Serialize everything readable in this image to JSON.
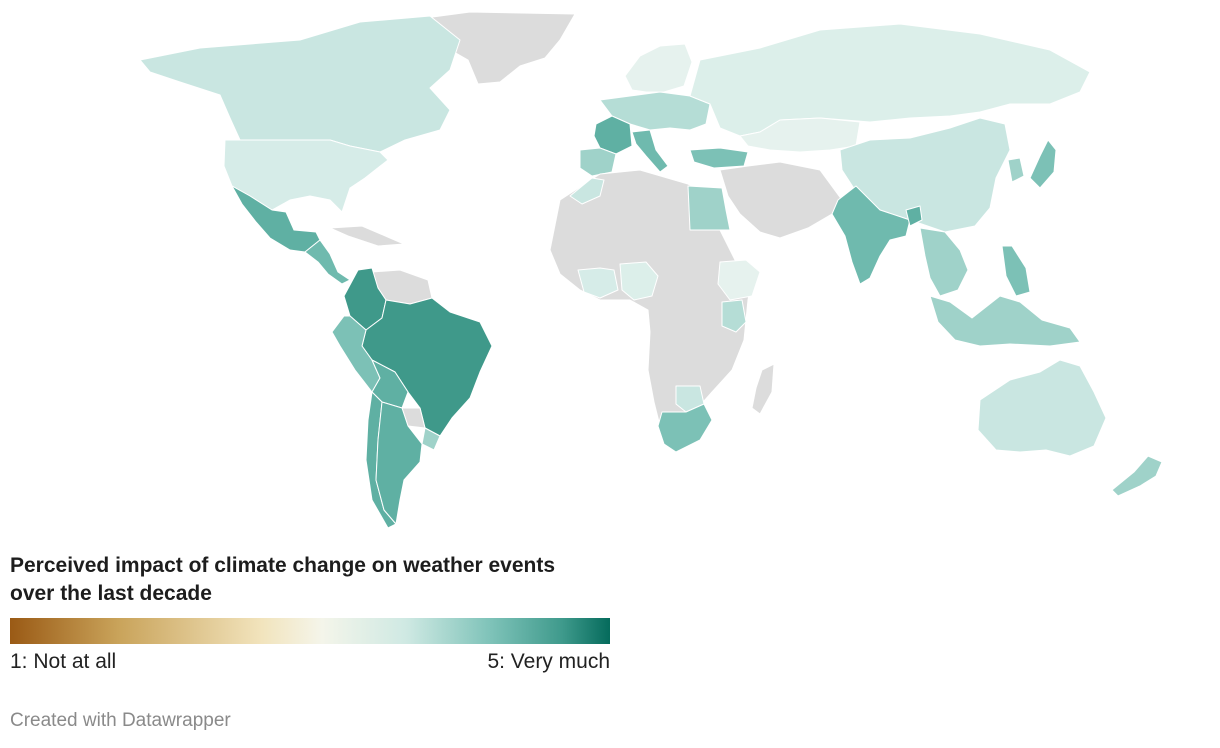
{
  "legend": {
    "title_line1": "Perceived impact of climate change on weather events",
    "title_line2": "over the last decade",
    "min_label": "1: Not at all",
    "max_label": "5: Very much",
    "scale_colors": [
      "#9a5a15",
      "#c9a35a",
      "#f2e4bd",
      "#f4f5ea",
      "#cfe9e3",
      "#7fc3b9",
      "#3f9a8c",
      "#056b5c"
    ]
  },
  "credit": "Created with Datawrapper",
  "map": {
    "no_data_color": "#dcdcdc",
    "regions": [
      {
        "name": "Canada",
        "color": "#c9e6e1"
      },
      {
        "name": "Greenland",
        "color": "#dcdcdc"
      },
      {
        "name": "United States",
        "color": "#d6ece8"
      },
      {
        "name": "Mexico",
        "color": "#5fb0a3"
      },
      {
        "name": "Central America",
        "color": "#6fbaae"
      },
      {
        "name": "Caribbean",
        "color": "#dcdcdc"
      },
      {
        "name": "Colombia",
        "color": "#3f998a"
      },
      {
        "name": "Venezuela",
        "color": "#dcdcdc"
      },
      {
        "name": "Brazil",
        "color": "#3f998a"
      },
      {
        "name": "Peru",
        "color": "#7cc1b6"
      },
      {
        "name": "Bolivia",
        "color": "#5fb0a3"
      },
      {
        "name": "Paraguay",
        "color": "#dcdcdc"
      },
      {
        "name": "Argentina",
        "color": "#5fb0a3"
      },
      {
        "name": "Chile",
        "color": "#5fb0a3"
      },
      {
        "name": "Uruguay",
        "color": "#9fd2c9"
      },
      {
        "name": "Europe",
        "color": "#b5ddd6"
      },
      {
        "name": "France",
        "color": "#5fb0a3"
      },
      {
        "name": "Italy",
        "color": "#6fbaae"
      },
      {
        "name": "Spain",
        "color": "#9fd2c9"
      },
      {
        "name": "Scandinavia",
        "color": "#e6f2ee"
      },
      {
        "name": "Russia",
        "color": "#dcefea"
      },
      {
        "name": "Kazakhstan",
        "color": "#e6f2ee"
      },
      {
        "name": "Turkey",
        "color": "#7cc1b6"
      },
      {
        "name": "China",
        "color": "#c9e6e1"
      },
      {
        "name": "Japan",
        "color": "#7cc1b6"
      },
      {
        "name": "Korea",
        "color": "#9fd2c9"
      },
      {
        "name": "India",
        "color": "#6fbaae"
      },
      {
        "name": "Bangladesh",
        "color": "#5fb0a3"
      },
      {
        "name": "Southeast Asia",
        "color": "#9fd2c9"
      },
      {
        "name": "Philippines",
        "color": "#7cc1b6"
      },
      {
        "name": "Indonesia",
        "color": "#9fd2c9"
      },
      {
        "name": "Australia",
        "color": "#c9e6e1"
      },
      {
        "name": "New Zealand",
        "color": "#9fd2c9"
      },
      {
        "name": "Egypt",
        "color": "#9fd2c9"
      },
      {
        "name": "Morocco",
        "color": "#c9e6e1"
      },
      {
        "name": "West Africa",
        "color": "#d6ece8"
      },
      {
        "name": "Nigeria",
        "color": "#dcefea"
      },
      {
        "name": "Ethiopia",
        "color": "#e6f2ee"
      },
      {
        "name": "Kenya",
        "color": "#b5ddd6"
      },
      {
        "name": "South Africa",
        "color": "#7cc1b6"
      },
      {
        "name": "Botswana",
        "color": "#c9e6e1"
      },
      {
        "name": "Rest of Africa",
        "color": "#dcdcdc"
      },
      {
        "name": "Middle East",
        "color": "#dcdcdc"
      },
      {
        "name": "Madagascar",
        "color": "#dcdcdc"
      }
    ]
  }
}
